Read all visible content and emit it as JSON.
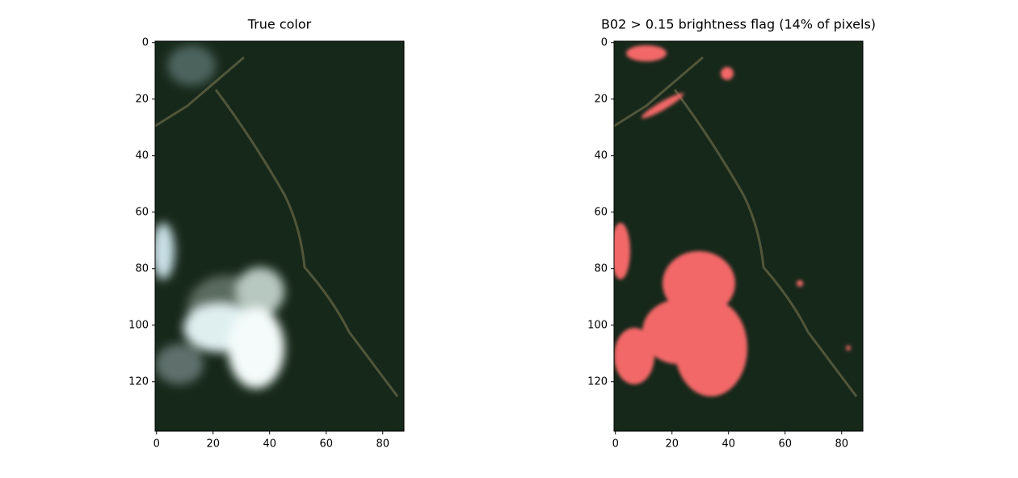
{
  "chart_data": [
    {
      "type": "image",
      "title": "True color",
      "xlim": [
        -0.5,
        87.5
      ],
      "ylim": [
        137.5,
        -0.5
      ],
      "xticks": [
        0,
        20,
        40,
        60,
        80
      ],
      "yticks": [
        0,
        20,
        40,
        60,
        80,
        100,
        120
      ]
    },
    {
      "type": "image",
      "title": "B02 > 0.15 brightness flag (14% of pixels)",
      "xlim": [
        -0.5,
        87.5
      ],
      "ylim": [
        137.5,
        -0.5
      ],
      "xticks": [
        0,
        20,
        40,
        60,
        80
      ],
      "yticks": [
        0,
        20,
        40,
        60,
        80,
        100,
        120
      ]
    }
  ]
}
